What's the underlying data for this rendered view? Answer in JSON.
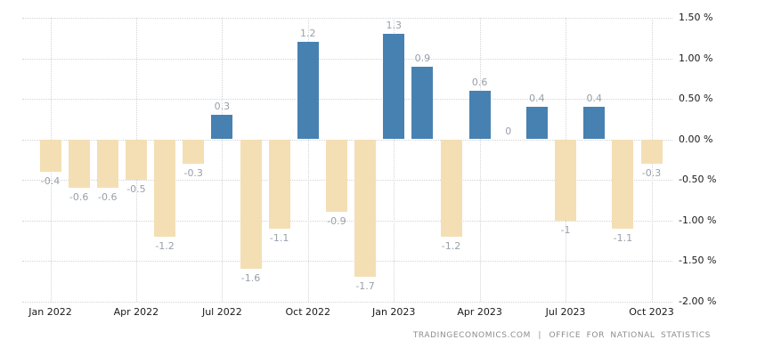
{
  "chart_data": {
    "type": "bar",
    "categories": [
      "Jan 2022",
      "Feb 2022",
      "Mar 2022",
      "Apr 2022",
      "May 2022",
      "Jun 2022",
      "Jul 2022",
      "Aug 2022",
      "Sep 2022",
      "Oct 2022",
      "Nov 2022",
      "Dec 2022",
      "Jan 2023",
      "Feb 2023",
      "Mar 2023",
      "Apr 2023",
      "May 2023",
      "Jun 2023",
      "Jul 2023",
      "Aug 2023",
      "Sep 2023",
      "Oct 2023"
    ],
    "values": [
      -0.4,
      -0.6,
      -0.6,
      -0.5,
      -1.2,
      -0.3,
      0.3,
      -1.6,
      -1.1,
      1.2,
      -0.9,
      -1.7,
      1.3,
      0.9,
      -1.2,
      0.6,
      0,
      0.4,
      -1,
      0.4,
      -1.1,
      -0.3
    ],
    "unit": "%",
    "ylim": [
      -2.0,
      1.5
    ],
    "y_ticks": [
      "1.50 %",
      "1.00 %",
      "0.50 %",
      "0.00 %",
      "-0.50 %",
      "-1.00 %",
      "-1.50 %",
      "-2.00 %"
    ],
    "x_tick_indices": [
      0,
      3,
      6,
      9,
      12,
      15,
      18,
      21
    ],
    "grid": true,
    "legend": "none",
    "bar_value_labels": true,
    "colors": {
      "positive": "#4781b1",
      "negative": "#f4dfb4",
      "value_label": "#98a0aa",
      "axis_label": "#1a1a1a",
      "gridline": "#d4d4d4",
      "background": "#ffffff"
    }
  },
  "footer": {
    "source_primary": "TRADINGECONOMICS.COM",
    "divider": "|",
    "source_secondary": "OFFICE FOR NATIONAL STATISTICS"
  }
}
